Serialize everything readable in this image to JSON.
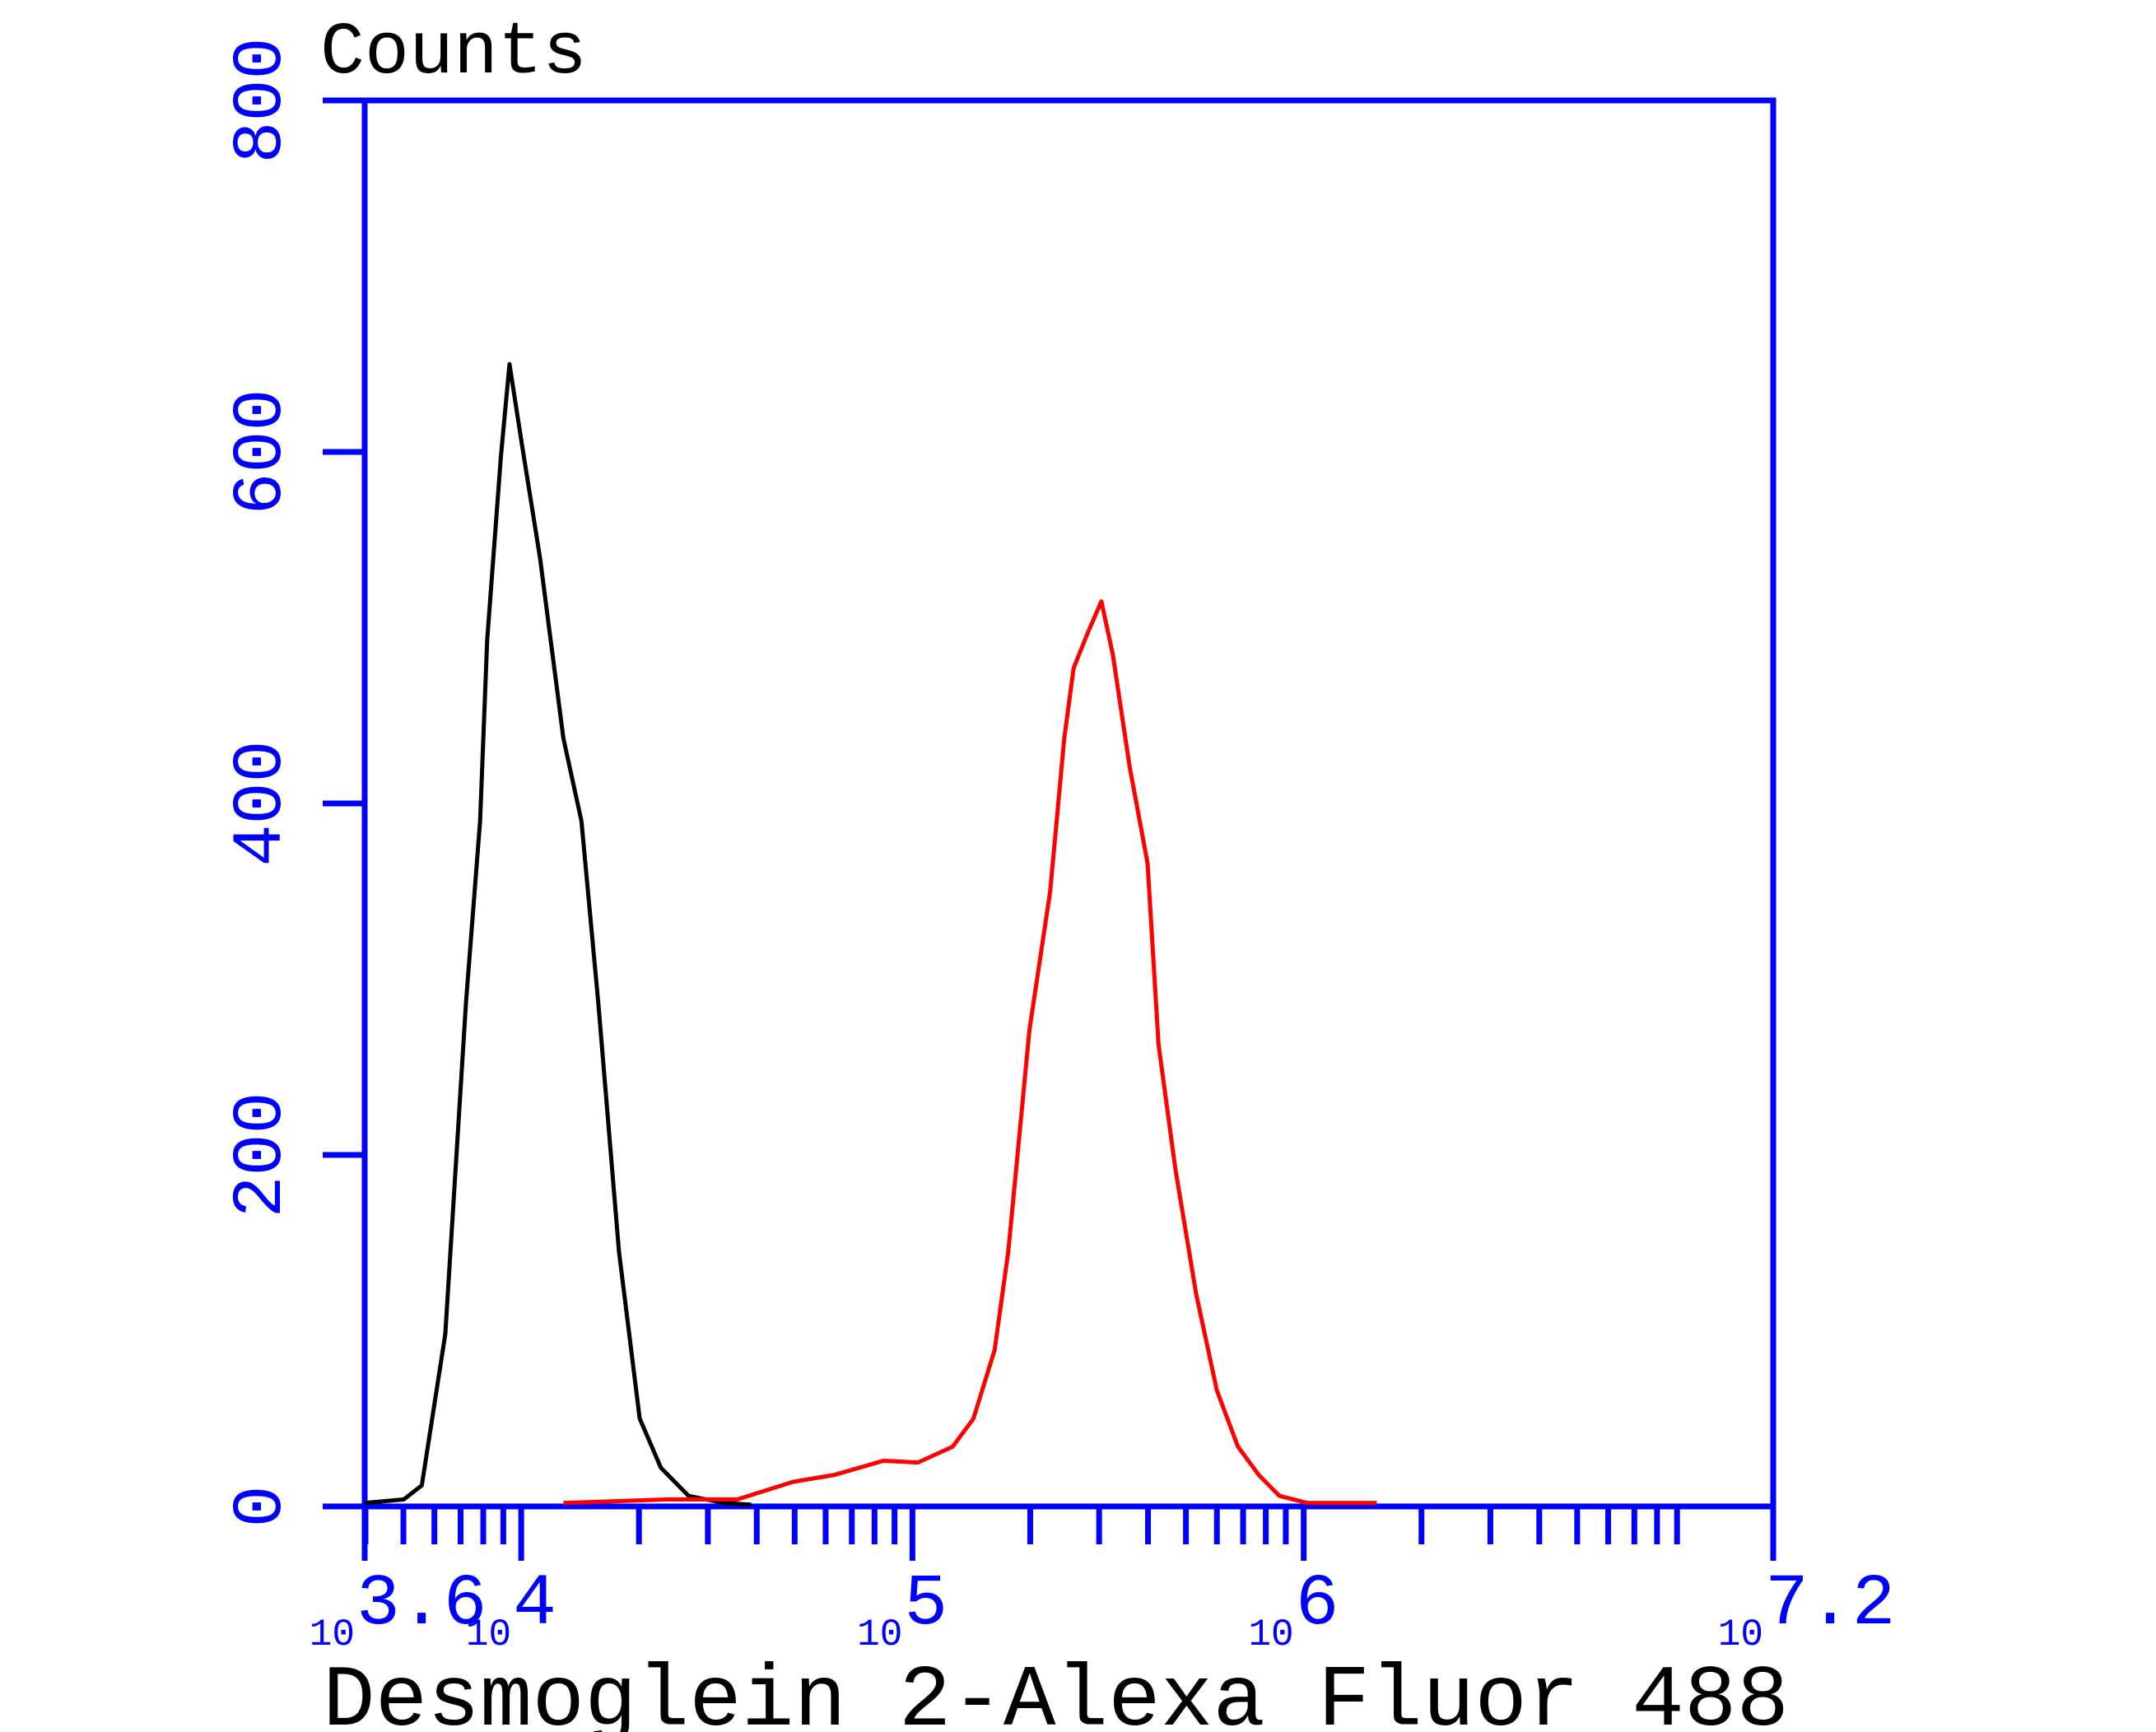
{
  "chart_data": {
    "type": "line",
    "title": "Counts",
    "x_label": "Desmoglein 2-Alexa Fluor 488",
    "x_tick_base": "10",
    "xscale": "log",
    "xlim": [
      3.6,
      7.2
    ],
    "xticks": [
      3.6,
      4,
      5,
      6,
      7.2
    ],
    "ylim": [
      0,
      800
    ],
    "yticks": [
      0,
      200,
      400,
      600,
      800
    ],
    "axis_color": "#0000ff",
    "grid": false,
    "series": [
      {
        "color": "#000000",
        "x": [
          3.6,
          3.7,
          3.746,
          3.806,
          3.859,
          3.895,
          3.913,
          3.948,
          3.97,
          4.002,
          4.048,
          4.108,
          4.154,
          4.197,
          4.25,
          4.303,
          4.357,
          4.428,
          4.517,
          4.588
        ],
        "values": [
          2,
          4,
          12,
          98,
          287,
          390,
          493,
          597,
          650,
          604,
          540,
          437,
          390,
          287,
          145,
          50,
          22,
          6,
          2,
          1
        ]
      },
      {
        "color": "#ff0000",
        "x": [
          4.108,
          4.375,
          4.552,
          4.695,
          4.801,
          4.926,
          5.014,
          5.103,
          5.156,
          5.21,
          5.245,
          5.299,
          5.352,
          5.388,
          5.412,
          5.448,
          5.483,
          5.512,
          5.555,
          5.601,
          5.629,
          5.672,
          5.725,
          5.778,
          5.832,
          5.885,
          5.938,
          6.009,
          6.187
        ],
        "values": [
          2,
          4,
          4,
          14,
          18,
          26,
          25,
          34,
          50,
          89,
          145,
          271,
          350,
          437,
          477,
          497,
          515,
          485,
          421,
          366,
          263,
          192,
          121,
          66,
          34,
          18,
          6,
          2,
          2
        ]
      }
    ]
  }
}
